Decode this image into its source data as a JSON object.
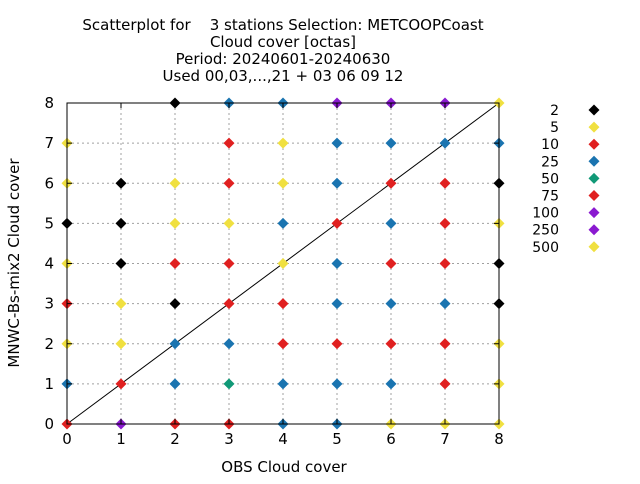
{
  "chart_data": {
    "type": "scatter",
    "title_lines": [
      "Scatterplot for    3 stations Selection: METCOOPCoast",
      "Cloud cover [octas]",
      "Period: 20240601-20240630",
      "Used 00,03,...,21 + 03 06 09 12"
    ],
    "xlabel": "OBS Cloud cover",
    "ylabel": "MNWC-Bs-mix2 Cloud cover",
    "xlim": [
      0,
      8
    ],
    "ylim": [
      0,
      8
    ],
    "xticks": [
      "0",
      "1",
      "2",
      "3",
      "4",
      "5",
      "6",
      "7",
      "8"
    ],
    "yticks": [
      "0",
      "1",
      "2",
      "3",
      "4",
      "5",
      "6",
      "7",
      "8"
    ],
    "grid": true,
    "legend_position": "right",
    "diagonal_line": true,
    "legend": [
      {
        "label": "2",
        "color": "#000000"
      },
      {
        "label": "5",
        "color": "#f0e040"
      },
      {
        "label": "10",
        "color": "#e02020"
      },
      {
        "label": "25",
        "color": "#1a74b0"
      },
      {
        "label": "50",
        "color": "#119977"
      },
      {
        "label": "75",
        "color": "#e02020"
      },
      {
        "label": "100",
        "color": "#8a1ad0"
      },
      {
        "label": "250",
        "color": "#8a1ad0"
      },
      {
        "label": "500",
        "color": "#f0e040"
      }
    ],
    "points": [
      {
        "x": 0,
        "y": 0,
        "color": "#e02020"
      },
      {
        "x": 1,
        "y": 0,
        "color": "#8a1ad0"
      },
      {
        "x": 2,
        "y": 0,
        "color": "#e02020"
      },
      {
        "x": 3,
        "y": 0,
        "color": "#e02020"
      },
      {
        "x": 4,
        "y": 0,
        "color": "#1a74b0"
      },
      {
        "x": 5,
        "y": 0,
        "color": "#1a74b0"
      },
      {
        "x": 6,
        "y": 0,
        "color": "#f0e040"
      },
      {
        "x": 7,
        "y": 0,
        "color": "#f0e040"
      },
      {
        "x": 8,
        "y": 0,
        "color": "#f0e040"
      },
      {
        "x": 0,
        "y": 1,
        "color": "#1a74b0"
      },
      {
        "x": 1,
        "y": 1,
        "color": "#e02020"
      },
      {
        "x": 2,
        "y": 1,
        "color": "#1a74b0"
      },
      {
        "x": 3,
        "y": 1,
        "color": "#119977"
      },
      {
        "x": 4,
        "y": 1,
        "color": "#1a74b0"
      },
      {
        "x": 5,
        "y": 1,
        "color": "#1a74b0"
      },
      {
        "x": 6,
        "y": 1,
        "color": "#1a74b0"
      },
      {
        "x": 7,
        "y": 1,
        "color": "#e02020"
      },
      {
        "x": 8,
        "y": 1,
        "color": "#f0e040"
      },
      {
        "x": 0,
        "y": 2,
        "color": "#f0e040"
      },
      {
        "x": 1,
        "y": 2,
        "color": "#f0e040"
      },
      {
        "x": 2,
        "y": 2,
        "color": "#1a74b0"
      },
      {
        "x": 3,
        "y": 2,
        "color": "#1a74b0"
      },
      {
        "x": 4,
        "y": 2,
        "color": "#e02020"
      },
      {
        "x": 5,
        "y": 2,
        "color": "#e02020"
      },
      {
        "x": 6,
        "y": 2,
        "color": "#e02020"
      },
      {
        "x": 7,
        "y": 2,
        "color": "#e02020"
      },
      {
        "x": 8,
        "y": 2,
        "color": "#f0e040"
      },
      {
        "x": 0,
        "y": 3,
        "color": "#e02020"
      },
      {
        "x": 1,
        "y": 3,
        "color": "#f0e040"
      },
      {
        "x": 2,
        "y": 3,
        "color": "#000000"
      },
      {
        "x": 3,
        "y": 3,
        "color": "#e02020"
      },
      {
        "x": 4,
        "y": 3,
        "color": "#e02020"
      },
      {
        "x": 5,
        "y": 3,
        "color": "#1a74b0"
      },
      {
        "x": 6,
        "y": 3,
        "color": "#1a74b0"
      },
      {
        "x": 7,
        "y": 3,
        "color": "#1a74b0"
      },
      {
        "x": 8,
        "y": 3,
        "color": "#000000"
      },
      {
        "x": 0,
        "y": 4,
        "color": "#f0e040"
      },
      {
        "x": 1,
        "y": 4,
        "color": "#000000"
      },
      {
        "x": 2,
        "y": 4,
        "color": "#e02020"
      },
      {
        "x": 3,
        "y": 4,
        "color": "#e02020"
      },
      {
        "x": 4,
        "y": 4,
        "color": "#f0e040"
      },
      {
        "x": 5,
        "y": 4,
        "color": "#1a74b0"
      },
      {
        "x": 6,
        "y": 4,
        "color": "#e02020"
      },
      {
        "x": 7,
        "y": 4,
        "color": "#e02020"
      },
      {
        "x": 8,
        "y": 4,
        "color": "#000000"
      },
      {
        "x": 0,
        "y": 5,
        "color": "#000000"
      },
      {
        "x": 1,
        "y": 5,
        "color": "#000000"
      },
      {
        "x": 2,
        "y": 5,
        "color": "#f0e040"
      },
      {
        "x": 3,
        "y": 5,
        "color": "#f0e040"
      },
      {
        "x": 4,
        "y": 5,
        "color": "#1a74b0"
      },
      {
        "x": 5,
        "y": 5,
        "color": "#e02020"
      },
      {
        "x": 6,
        "y": 5,
        "color": "#1a74b0"
      },
      {
        "x": 7,
        "y": 5,
        "color": "#e02020"
      },
      {
        "x": 8,
        "y": 5,
        "color": "#f0e040"
      },
      {
        "x": 0,
        "y": 6,
        "color": "#f0e040"
      },
      {
        "x": 1,
        "y": 6,
        "color": "#000000"
      },
      {
        "x": 2,
        "y": 6,
        "color": "#f0e040"
      },
      {
        "x": 3,
        "y": 6,
        "color": "#e02020"
      },
      {
        "x": 4,
        "y": 6,
        "color": "#f0e040"
      },
      {
        "x": 5,
        "y": 6,
        "color": "#1a74b0"
      },
      {
        "x": 6,
        "y": 6,
        "color": "#e02020"
      },
      {
        "x": 7,
        "y": 6,
        "color": "#e02020"
      },
      {
        "x": 8,
        "y": 6,
        "color": "#000000"
      },
      {
        "x": 0,
        "y": 7,
        "color": "#f0e040"
      },
      {
        "x": 3,
        "y": 7,
        "color": "#e02020"
      },
      {
        "x": 4,
        "y": 7,
        "color": "#f0e040"
      },
      {
        "x": 5,
        "y": 7,
        "color": "#1a74b0"
      },
      {
        "x": 6,
        "y": 7,
        "color": "#1a74b0"
      },
      {
        "x": 7,
        "y": 7,
        "color": "#1a74b0"
      },
      {
        "x": 8,
        "y": 7,
        "color": "#1a74b0"
      },
      {
        "x": 2,
        "y": 8,
        "color": "#000000"
      },
      {
        "x": 3,
        "y": 8,
        "color": "#1a74b0"
      },
      {
        "x": 4,
        "y": 8,
        "color": "#1a74b0"
      },
      {
        "x": 5,
        "y": 8,
        "color": "#8a1ad0"
      },
      {
        "x": 6,
        "y": 8,
        "color": "#8a1ad0"
      },
      {
        "x": 7,
        "y": 8,
        "color": "#8a1ad0"
      },
      {
        "x": 8,
        "y": 8,
        "color": "#f0e040"
      }
    ]
  }
}
